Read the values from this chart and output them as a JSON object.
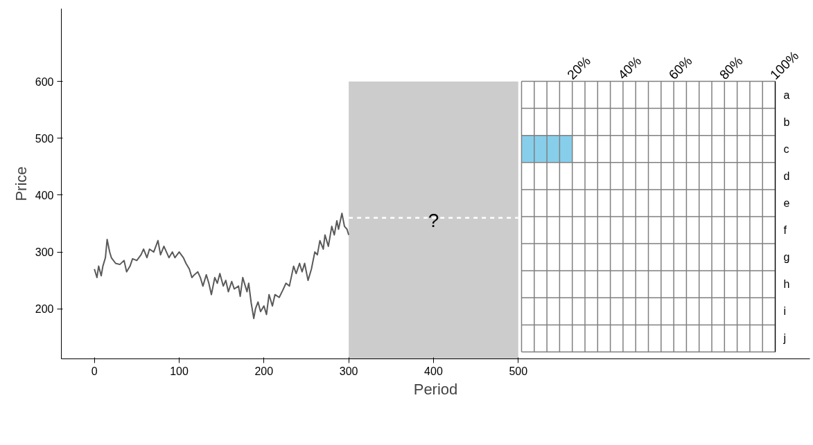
{
  "chart_data": [
    {
      "type": "line",
      "xlabel": "Period",
      "ylabel": "Price",
      "xlim": [
        -39,
        844
      ],
      "ylim": [
        112,
        728
      ],
      "xticks": [
        0,
        100,
        200,
        300,
        400,
        500
      ],
      "yticks": [
        200,
        300,
        400,
        500,
        600
      ],
      "series": [
        {
          "color": "#595959",
          "x": [
            0,
            3,
            5,
            8,
            10,
            13,
            15,
            18,
            20,
            25,
            30,
            35,
            38,
            42,
            45,
            50,
            55,
            58,
            62,
            65,
            70,
            75,
            78,
            82,
            85,
            88,
            92,
            95,
            100,
            105,
            108,
            112,
            115,
            118,
            122,
            125,
            128,
            132,
            135,
            138,
            142,
            145,
            148,
            152,
            155,
            158,
            162,
            165,
            170,
            172,
            175,
            178,
            180,
            182,
            185,
            188,
            190,
            193,
            196,
            200,
            203,
            206,
            210,
            213,
            218,
            222,
            226,
            230,
            235,
            238,
            242,
            245,
            248,
            252,
            256,
            260,
            263,
            266,
            270,
            272,
            276,
            280,
            283,
            286,
            288,
            292,
            295,
            298,
            300
          ],
          "values": [
            270,
            255,
            275,
            258,
            275,
            290,
            322,
            300,
            290,
            280,
            278,
            285,
            265,
            275,
            288,
            285,
            295,
            305,
            290,
            305,
            300,
            320,
            295,
            310,
            300,
            290,
            300,
            290,
            300,
            290,
            280,
            270,
            255,
            260,
            265,
            255,
            240,
            260,
            245,
            225,
            255,
            245,
            262,
            240,
            250,
            230,
            248,
            235,
            240,
            222,
            255,
            240,
            230,
            245,
            210,
            183,
            200,
            212,
            195,
            205,
            190,
            225,
            205,
            225,
            220,
            232,
            245,
            240,
            275,
            262,
            280,
            265,
            280,
            250,
            270,
            300,
            295,
            320,
            305,
            330,
            310,
            345,
            330,
            355,
            340,
            368,
            345,
            340,
            330
          ]
        },
        {
          "type": "line",
          "color": "#ffffff",
          "line_style": "dashed",
          "x": [
            300,
            500
          ],
          "values": [
            360,
            360
          ]
        }
      ],
      "bands": [
        {
          "axis": "x",
          "from": 300,
          "to": 500,
          "color": "#cccccc",
          "label": "?"
        }
      ]
    },
    {
      "type": "bar",
      "orientation": "horizontal",
      "categories": [
        "a",
        "b",
        "c",
        "d",
        "e",
        "f",
        "g",
        "h",
        "i",
        "j"
      ],
      "values": [
        0,
        0,
        20,
        0,
        0,
        0,
        0,
        0,
        0,
        0
      ],
      "color": "#87ceeb",
      "xlim": [
        0,
        100
      ],
      "grid": true,
      "xticks": [
        {
          "value": 0,
          "label": null
        },
        {
          "value": 5,
          "label": null
        },
        {
          "value": 10,
          "label": null
        },
        {
          "value": 15,
          "label": null
        },
        {
          "value": 20,
          "label": "20%"
        },
        {
          "value": 25,
          "label": null
        },
        {
          "value": 30,
          "label": null
        },
        {
          "value": 35,
          "label": null
        },
        {
          "value": 40,
          "label": "40%"
        },
        {
          "value": 45,
          "label": null
        },
        {
          "value": 50,
          "label": null
        },
        {
          "value": 55,
          "label": null
        },
        {
          "value": 60,
          "label": "60%"
        },
        {
          "value": 65,
          "label": null
        },
        {
          "value": 70,
          "label": null
        },
        {
          "value": 75,
          "label": null
        },
        {
          "value": 80,
          "label": "80%"
        },
        {
          "value": 85,
          "label": null
        },
        {
          "value": 90,
          "label": null
        },
        {
          "value": 95,
          "label": null
        },
        {
          "value": 100,
          "label": "100%"
        }
      ]
    }
  ]
}
